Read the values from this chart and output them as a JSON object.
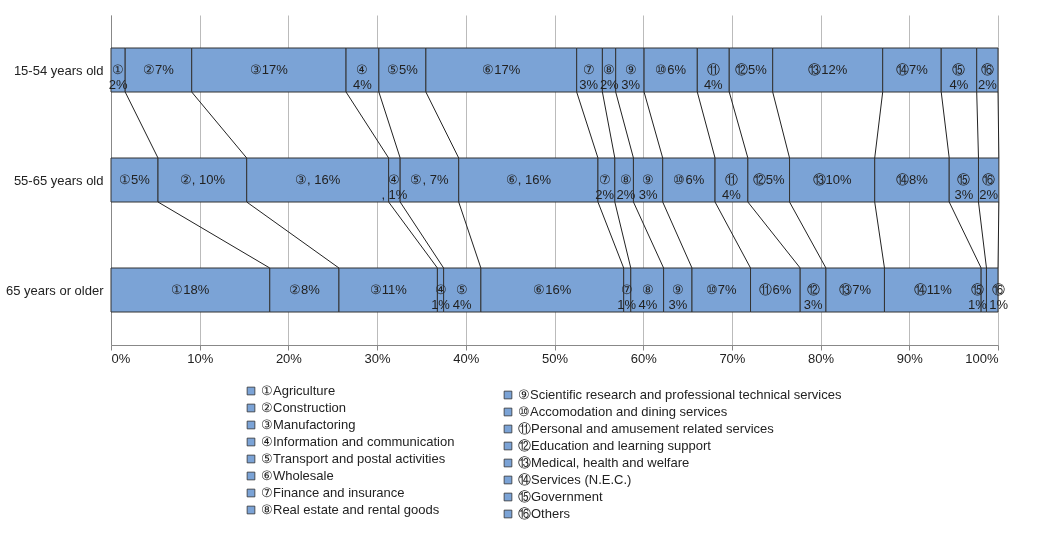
{
  "chart_data": {
    "type": "bar",
    "orientation": "horizontal",
    "stacked": true,
    "categories": [
      "15-54 years old",
      "55-65 years old",
      "65 years or older"
    ],
    "xlim": [
      0,
      100
    ],
    "xticks": [
      {
        "value": 0,
        "label": "0%"
      },
      {
        "value": 10,
        "label": "10%"
      },
      {
        "value": 20,
        "label": "20%"
      },
      {
        "value": 30,
        "label": "30%"
      },
      {
        "value": 40,
        "label": "40%"
      },
      {
        "value": 50,
        "label": "50%"
      },
      {
        "value": 60,
        "label": "60%"
      },
      {
        "value": 70,
        "label": "70%"
      },
      {
        "value": 80,
        "label": "80%"
      },
      {
        "value": 90,
        "label": "90%"
      },
      {
        "value": 100,
        "label": "100%"
      }
    ],
    "grid": "x",
    "legend": "bottom",
    "series": [
      {
        "name": "①Agriculture",
        "color": "#7ba3d6",
        "values": [
          1.6,
          5.3,
          17.9
        ],
        "value_labels": [
          "①2%",
          "①5%",
          "①18%"
        ]
      },
      {
        "name": "②Construction",
        "color": "#7ba3d6",
        "values": [
          7.5,
          10.0,
          7.8
        ],
        "value_labels": [
          "②7%",
          "②, 10%",
          "②8%"
        ]
      },
      {
        "name": "③Manufactoring",
        "color": "#7ba3d6",
        "values": [
          17.4,
          16.0,
          11.1
        ],
        "value_labels": [
          "③17%",
          "③, 16%",
          "③11%"
        ]
      },
      {
        "name": "④Information and communication",
        "color": "#7ba3d6",
        "values": [
          3.7,
          1.3,
          0.7
        ],
        "value_labels": [
          "④4%",
          "④, 1%",
          "④1%"
        ]
      },
      {
        "name": "⑤Transport and postal activities",
        "color": "#7ba3d6",
        "values": [
          5.3,
          6.6,
          4.2
        ],
        "value_labels": [
          "⑤5%",
          "⑤, 7%",
          "⑤4%"
        ]
      },
      {
        "name": "⑥Wholesale",
        "color": "#7ba3d6",
        "values": [
          17.0,
          15.7,
          16.1
        ],
        "value_labels": [
          "⑥17%",
          "⑥, 16%",
          "⑥16%"
        ]
      },
      {
        "name": "⑦Finance and insurance",
        "color": "#7ba3d6",
        "values": [
          2.9,
          1.9,
          0.8
        ],
        "value_labels": [
          "⑦3%",
          "⑦2%",
          "⑦1%"
        ]
      },
      {
        "name": "⑧Real estate and rental goods",
        "color": "#7ba3d6",
        "values": [
          1.5,
          2.1,
          3.7
        ],
        "value_labels": [
          "⑧2%",
          "⑧2%",
          "⑧4%"
        ]
      },
      {
        "name": "⑨Scientific research and professional technical services",
        "color": "#7ba3d6",
        "values": [
          3.2,
          3.3,
          3.2
        ],
        "value_labels": [
          "⑨3%",
          "⑨3%",
          "⑨3%"
        ]
      },
      {
        "name": "⑩Accomodation and dining services",
        "color": "#7ba3d6",
        "values": [
          6.0,
          5.9,
          6.6
        ],
        "value_labels": [
          "⑩6%",
          "⑩6%",
          "⑩7%"
        ]
      },
      {
        "name": "⑪Personal and amusement related services",
        "color": "#7ba3d6",
        "values": [
          3.6,
          3.7,
          5.6
        ],
        "value_labels": [
          "⑪4%",
          "⑪4%",
          "⑪6%"
        ]
      },
      {
        "name": "⑫Education and learning support",
        "color": "#7ba3d6",
        "values": [
          4.9,
          4.7,
          2.9
        ],
        "value_labels": [
          "⑫5%",
          "⑫5%",
          "⑫3%"
        ]
      },
      {
        "name": "⑬Medical, health and welfare",
        "color": "#7ba3d6",
        "values": [
          12.4,
          9.6,
          6.6
        ],
        "value_labels": [
          "⑬12%",
          "⑬10%",
          "⑬7%"
        ]
      },
      {
        "name": "⑭Services (N.E.C.)",
        "color": "#7ba3d6",
        "values": [
          6.6,
          8.4,
          10.9
        ],
        "value_labels": [
          "⑭7%",
          "⑭8%",
          "⑭11%"
        ]
      },
      {
        "name": "⑮Government",
        "color": "#7ba3d6",
        "values": [
          4.0,
          3.3,
          0.6
        ],
        "value_labels": [
          "⑮4%",
          "⑮3%",
          "⑮1%"
        ]
      },
      {
        "name": "⑯Others",
        "color": "#7ba3d6",
        "values": [
          2.4,
          2.3,
          1.3
        ],
        "value_labels": [
          "⑯2%",
          "⑯2%",
          "⑯1%"
        ]
      }
    ]
  }
}
